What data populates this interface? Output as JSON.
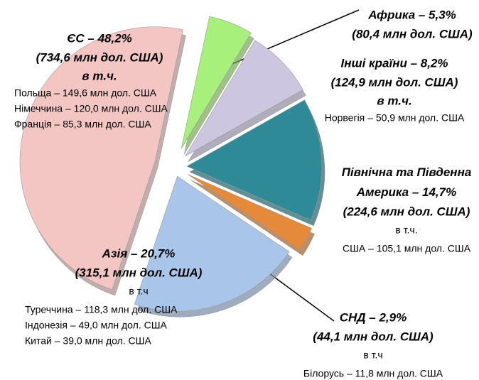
{
  "chart_data": {
    "type": "pie",
    "values": [
      5.3,
      8.2,
      14.7,
      2.9,
      20.7,
      48.2
    ],
    "value_labels": [
      "Африка – 5,3%",
      "Інші країни  – 8,2%",
      "Північна та Південна Америка – 14,7%",
      "СНД – 2,9%",
      "Азія – 20,7%",
      "ЄС – 48,2%"
    ],
    "amounts": [
      "(80,4 млн дол. США)",
      "(124,9 млн дол. США)",
      "(224,6 млн дол. США)",
      "(44,1 млн дол. США)",
      "(315,1 млн дол. США)",
      "(734,6 млн дол. США)"
    ],
    "notes": [
      null,
      "в т.ч.",
      "в т.ч.",
      "в т.ч",
      "в т.ч",
      "в т.ч."
    ],
    "details": [
      [],
      [
        "Норвегія – 50,9 млн дол. США"
      ],
      [
        "США – 105,1 млн дол. США"
      ],
      [
        "Білорусь – 11,8 млн дол. США"
      ],
      [
        "Туреччина – 118,3 млн дол. США",
        "Індонезія – 49,0 млн дол. США",
        "Китай – 39,0 млн дол. США"
      ],
      [
        "Польща – 149,6 млн дол. США",
        "Німеччина – 120,0 млн дол. США",
        "Франція – 85,3 млн дол. США"
      ]
    ],
    "colors": [
      "#a8f07c",
      "#cdc6e0",
      "#2f8a98",
      "#e5893a",
      "#a9c5ea",
      "#f3c6c4"
    ]
  }
}
